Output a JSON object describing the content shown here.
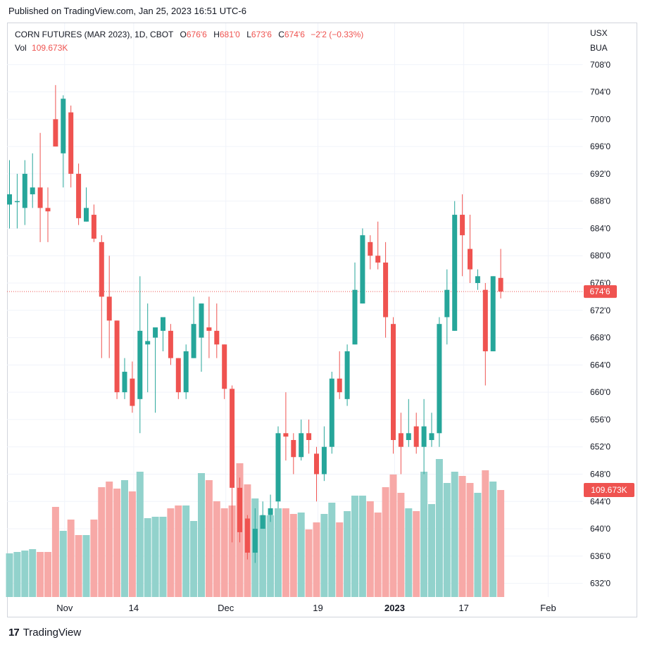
{
  "published": "Published on TradingView.com, Jan 25, 2023 16:51 UTC-6",
  "header": {
    "symbol": "CORN FUTURES (MAR 2023), 1D, CBOT",
    "open_label": "O",
    "open_value": "676'6",
    "high_label": "H",
    "high_value": "681'0",
    "low_label": "L",
    "low_value": "673'6",
    "close_label": "C",
    "close_value": "674'6",
    "change": "−2'2 (−0.33%)",
    "vol_label": "Vol",
    "vol_value": "109.673K"
  },
  "scale": {
    "currency": "USX",
    "unit": "BUA"
  },
  "footer": {
    "brand": "TradingView"
  },
  "colors": {
    "up": "#26a69a",
    "down": "#ef5350",
    "up_vol": "#92d2cc",
    "down_vol": "#f7a9a7",
    "grid": "#f0f3fa"
  },
  "chart_data": {
    "type": "candlestick",
    "title": "CORN FUTURES (MAR 2023), 1D, CBOT",
    "y_tick_labels": [
      "632'0",
      "636'0",
      "640'0",
      "644'0",
      "648'0",
      "652'0",
      "656'0",
      "660'0",
      "664'0",
      "668'0",
      "672'0",
      "676'0",
      "680'0",
      "684'0",
      "688'0",
      "692'0",
      "696'0",
      "700'0",
      "704'0",
      "708'0"
    ],
    "y_tick_values": [
      632,
      636,
      640,
      644,
      648,
      652,
      656,
      660,
      664,
      668,
      672,
      676,
      680,
      684,
      688,
      692,
      696,
      700,
      704,
      708
    ],
    "x_tick_labels": [
      "Nov",
      "14",
      "Dec",
      "19",
      "2023",
      "17",
      "Feb"
    ],
    "x_tick_index": [
      7,
      16,
      28,
      40,
      50,
      59,
      70
    ],
    "last_price_label": "674'6",
    "last_price": 674.75,
    "last_volume_label": "109.673K",
    "candles": [
      {
        "o": 687.5,
        "h": 694.0,
        "l": 684.0,
        "c": 689.0,
        "v": 0.31
      },
      {
        "o": 688.0,
        "h": 692.0,
        "l": 684.0,
        "c": 688.0,
        "v": 0.32
      },
      {
        "o": 687.0,
        "h": 694.0,
        "l": 684.5,
        "c": 692.0,
        "v": 0.33
      },
      {
        "o": 689.0,
        "h": 695.0,
        "l": 687.0,
        "c": 690.0,
        "v": 0.34
      },
      {
        "o": 690.0,
        "h": 698.0,
        "l": 682.0,
        "c": 687.0,
        "v": 0.32
      },
      {
        "o": 687.0,
        "h": 690.0,
        "l": 682.0,
        "c": 686.5,
        "v": 0.32
      },
      {
        "o": 700.0,
        "h": 705.0,
        "l": 696.0,
        "c": 696.0,
        "v": 0.64
      },
      {
        "o": 695.0,
        "h": 703.5,
        "l": 690.0,
        "c": 703.0,
        "v": 0.47
      },
      {
        "o": 701.0,
        "h": 702.0,
        "l": 690.0,
        "c": 692.0,
        "v": 0.55
      },
      {
        "o": 692.0,
        "h": 693.5,
        "l": 684.5,
        "c": 685.5,
        "v": 0.44
      },
      {
        "o": 685.0,
        "h": 690.0,
        "l": 685.0,
        "c": 687.0,
        "v": 0.44
      },
      {
        "o": 686.0,
        "h": 687.5,
        "l": 682.0,
        "c": 682.5,
        "v": 0.55
      },
      {
        "o": 682.0,
        "h": 683.0,
        "l": 665.0,
        "c": 674.0,
        "v": 0.78
      },
      {
        "o": 674.0,
        "h": 680.0,
        "l": 665.0,
        "c": 670.5,
        "v": 0.82
      },
      {
        "o": 670.5,
        "h": 670.5,
        "l": 659.0,
        "c": 660.0,
        "v": 0.77
      },
      {
        "o": 660.0,
        "h": 665.0,
        "l": 659.0,
        "c": 663.0,
        "v": 0.83
      },
      {
        "o": 662.0,
        "h": 664.5,
        "l": 657.0,
        "c": 658.0,
        "v": 0.75
      },
      {
        "o": 659.0,
        "h": 677.0,
        "l": 654.0,
        "c": 669.0,
        "v": 0.89
      },
      {
        "o": 667.0,
        "h": 673.0,
        "l": 660.0,
        "c": 667.5,
        "v": 0.56
      },
      {
        "o": 668.0,
        "h": 669.0,
        "l": 657.0,
        "c": 669.5,
        "v": 0.57
      },
      {
        "o": 669.0,
        "h": 671.0,
        "l": 666.0,
        "c": 671.0,
        "v": 0.57
      },
      {
        "o": 669.0,
        "h": 670.0,
        "l": 664.0,
        "c": 665.0,
        "v": 0.63
      },
      {
        "o": 665.0,
        "h": 665.0,
        "l": 659.0,
        "c": 660.0,
        "v": 0.65
      },
      {
        "o": 660.0,
        "h": 667.0,
        "l": 659.0,
        "c": 666.0,
        "v": 0.65
      },
      {
        "o": 665.0,
        "h": 674.0,
        "l": 665.0,
        "c": 670.0,
        "v": 0.54
      },
      {
        "o": 668.0,
        "h": 673.0,
        "l": 663.0,
        "c": 673.0,
        "v": 0.88
      },
      {
        "o": 669.5,
        "h": 674.0,
        "l": 665.0,
        "c": 669.0,
        "v": 0.83
      },
      {
        "o": 669.0,
        "h": 673.0,
        "l": 665.0,
        "c": 667.0,
        "v": 0.68
      },
      {
        "o": 667.0,
        "h": 667.0,
        "l": 659.0,
        "c": 660.5,
        "v": 0.63
      },
      {
        "o": 660.5,
        "h": 661.0,
        "l": 638.0,
        "c": 646.0,
        "v": 0.65
      },
      {
        "o": 646.0,
        "h": 647.5,
        "l": 638.0,
        "c": 639.5,
        "v": 0.95
      },
      {
        "o": 641.5,
        "h": 642.0,
        "l": 635.5,
        "c": 636.5,
        "v": 0.8
      },
      {
        "o": 636.5,
        "h": 643.0,
        "l": 635.0,
        "c": 640.0,
        "v": 0.7
      },
      {
        "o": 640.0,
        "h": 644.0,
        "l": 640.0,
        "c": 642.0,
        "v": 0.58
      },
      {
        "o": 642.0,
        "h": 645.0,
        "l": 641.0,
        "c": 643.0,
        "v": 0.58
      },
      {
        "o": 644.0,
        "h": 655.0,
        "l": 643.0,
        "c": 654.0,
        "v": 0.63
      },
      {
        "o": 654.0,
        "h": 660.0,
        "l": 650.0,
        "c": 653.5,
        "v": 0.63
      },
      {
        "o": 653.0,
        "h": 654.0,
        "l": 648.0,
        "c": 650.5,
        "v": 0.59
      },
      {
        "o": 650.5,
        "h": 656.0,
        "l": 650.0,
        "c": 654.0,
        "v": 0.6
      },
      {
        "o": 654.0,
        "h": 656.0,
        "l": 651.0,
        "c": 653.0,
        "v": 0.48
      },
      {
        "o": 651.0,
        "h": 652.0,
        "l": 644.0,
        "c": 648.0,
        "v": 0.53
      },
      {
        "o": 648.0,
        "h": 655.0,
        "l": 647.0,
        "c": 652.0,
        "v": 0.59
      },
      {
        "o": 652.0,
        "h": 663.0,
        "l": 651.0,
        "c": 662.0,
        "v": 0.67
      },
      {
        "o": 662.0,
        "h": 666.0,
        "l": 659.0,
        "c": 660.0,
        "v": 0.53
      },
      {
        "o": 659.0,
        "h": 667.0,
        "l": 658.0,
        "c": 666.0,
        "v": 0.61
      },
      {
        "o": 667.0,
        "h": 679.0,
        "l": 667.0,
        "c": 675.0,
        "v": 0.72
      },
      {
        "o": 673.0,
        "h": 684.0,
        "l": 673.0,
        "c": 683.0,
        "v": 0.72
      },
      {
        "o": 682.0,
        "h": 683.0,
        "l": 678.0,
        "c": 680.0,
        "v": 0.68
      },
      {
        "o": 680.0,
        "h": 685.0,
        "l": 678.0,
        "c": 679.0,
        "v": 0.6
      },
      {
        "o": 679.0,
        "h": 682.0,
        "l": 668.0,
        "c": 671.0,
        "v": 0.78
      },
      {
        "o": 670.0,
        "h": 671.0,
        "l": 651.0,
        "c": 653.0,
        "v": 0.87
      },
      {
        "o": 654.0,
        "h": 657.0,
        "l": 648.0,
        "c": 652.0,
        "v": 0.74
      },
      {
        "o": 653.0,
        "h": 659.0,
        "l": 652.0,
        "c": 654.0,
        "v": 0.63
      },
      {
        "o": 655.0,
        "h": 657.0,
        "l": 651.0,
        "c": 652.0,
        "v": 0.61
      },
      {
        "o": 652.0,
        "h": 659.0,
        "l": 648.0,
        "c": 655.0,
        "v": 0.89
      },
      {
        "o": 653.0,
        "h": 657.0,
        "l": 652.0,
        "c": 654.0,
        "v": 0.66
      },
      {
        "o": 654.0,
        "h": 671.0,
        "l": 652.0,
        "c": 670.0,
        "v": 0.98
      },
      {
        "o": 671.0,
        "h": 678.0,
        "l": 667.0,
        "c": 675.0,
        "v": 0.81
      },
      {
        "o": 669.0,
        "h": 688.0,
        "l": 669.0,
        "c": 686.0,
        "v": 0.89
      },
      {
        "o": 686.0,
        "h": 689.0,
        "l": 677.0,
        "c": 683.0,
        "v": 0.86
      },
      {
        "o": 681.0,
        "h": 686.0,
        "l": 676.0,
        "c": 678.0,
        "v": 0.81
      },
      {
        "o": 676.0,
        "h": 678.0,
        "l": 675.0,
        "c": 677.0,
        "v": 0.74
      },
      {
        "o": 675.0,
        "h": 676.0,
        "l": 661.0,
        "c": 666.0,
        "v": 0.9
      },
      {
        "o": 666.0,
        "h": 677.0,
        "l": 666.0,
        "c": 677.0,
        "v": 0.82
      },
      {
        "o": 676.75,
        "h": 681.0,
        "l": 673.75,
        "c": 674.75,
        "v": 0.76
      }
    ]
  }
}
